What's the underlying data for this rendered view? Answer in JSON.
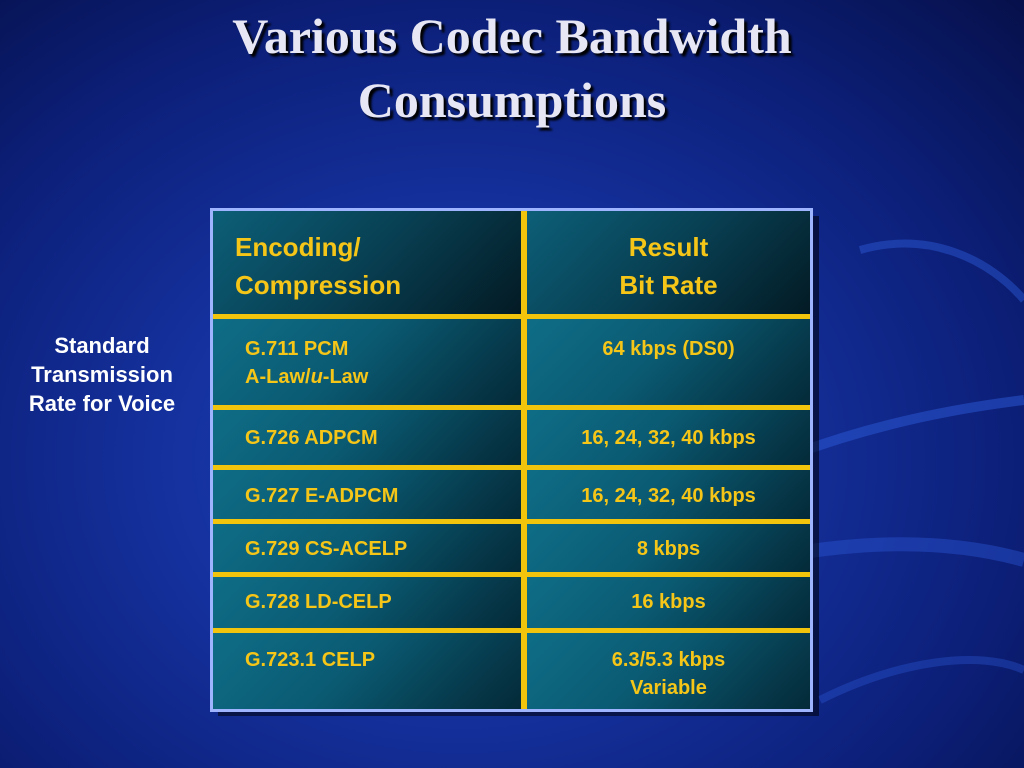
{
  "slide": {
    "title_line1": "Various Codec Bandwidth",
    "title_line2": "Consumptions",
    "side_label": [
      "Standard",
      "Transmission",
      "Rate for Voice"
    ],
    "colors": {
      "background": "#1532a0",
      "table_divider": "#f2c40c",
      "table_text": "#f5c518",
      "cell": "#0a5a72",
      "table_border": "#9fb4ff"
    }
  },
  "table": {
    "headers": {
      "encoding": [
        "Encoding/",
        "Compression"
      ],
      "result": [
        "Result",
        "Bit Rate"
      ]
    },
    "rows": [
      {
        "encoding": [
          "G.711 PCM",
          "A-Law/u-Law"
        ],
        "encoding_parts": [
          "A-Law/",
          "u",
          "-Law"
        ],
        "rate": [
          "64 kbps (DS0)"
        ]
      },
      {
        "encoding": [
          "G.726 ADPCM"
        ],
        "rate": [
          "16, 24, 32, 40 kbps"
        ]
      },
      {
        "encoding": [
          "G.727 E-ADPCM"
        ],
        "rate": [
          "16, 24, 32, 40 kbps"
        ]
      },
      {
        "encoding": [
          "G.729 CS-ACELP"
        ],
        "rate": [
          "8 kbps"
        ]
      },
      {
        "encoding": [
          "G.728 LD-CELP"
        ],
        "rate": [
          "16 kbps"
        ]
      },
      {
        "encoding": [
          "G.723.1 CELP"
        ],
        "rate": [
          "6.3/5.3 kbps",
          "Variable"
        ]
      }
    ]
  }
}
